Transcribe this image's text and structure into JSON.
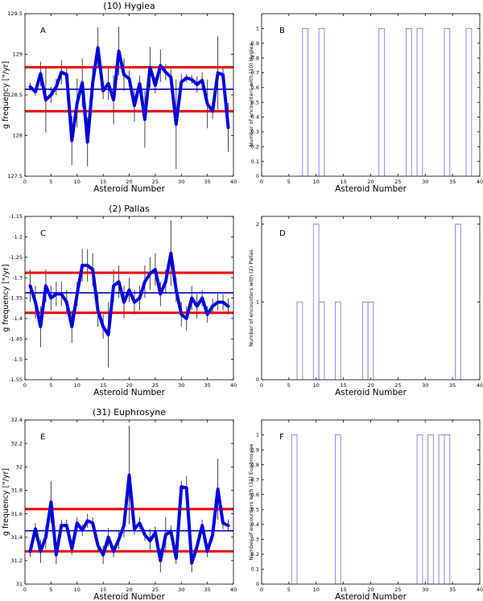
{
  "chart_data": [
    {
      "type": "line",
      "title": "(10) Hygiea",
      "panel_label": "A",
      "xlabel": "Asteroid Number",
      "ylabel": "g frequency [\"/yr]",
      "xlim": [
        0,
        40
      ],
      "ylim": [
        127.5,
        129.5
      ],
      "xticks": [
        0,
        5,
        10,
        15,
        20,
        25,
        30,
        35,
        40
      ],
      "yticks": [
        127.5,
        128,
        128.5,
        129,
        129.5
      ],
      "ytick_labels": [
        "127.5",
        "128",
        "128.5",
        "129",
        "129.5"
      ],
      "mean": 128.57,
      "band": [
        128.3,
        128.84
      ],
      "series": [
        {
          "name": "g frequency",
          "x": [
            1,
            2,
            3,
            4,
            5,
            6,
            7,
            8,
            9,
            10,
            11,
            12,
            13,
            14,
            15,
            16,
            17,
            18,
            19,
            20,
            21,
            22,
            23,
            24,
            25,
            26,
            27,
            28,
            29,
            30,
            31,
            32,
            33,
            34,
            35,
            36,
            37,
            38,
            39
          ],
          "y": [
            128.6,
            128.54,
            128.76,
            128.44,
            128.5,
            128.6,
            128.78,
            128.75,
            127.94,
            128.4,
            128.65,
            127.92,
            128.65,
            129.08,
            128.55,
            128.64,
            128.44,
            129.04,
            128.75,
            128.7,
            128.37,
            128.64,
            128.2,
            128.84,
            128.62,
            128.86,
            128.78,
            128.72,
            128.14,
            128.66,
            128.71,
            128.69,
            128.63,
            128.68,
            128.39,
            128.3,
            128.77,
            128.75,
            128.1
          ],
          "err": [
            0.05,
            0.05,
            0.15,
            0.4,
            0.1,
            0.1,
            0.15,
            0.1,
            0.3,
            0.3,
            0.3,
            0.3,
            0.2,
            0.25,
            0.1,
            0.2,
            0.3,
            0.3,
            0.2,
            0.1,
            0.2,
            0.1,
            0.35,
            0.25,
            0.1,
            0.2,
            0.1,
            0.1,
            0.55,
            0.1,
            0.05,
            0.05,
            0.1,
            0.1,
            0.3,
            0.1,
            0.45,
            0.1,
            0.3
          ]
        }
      ]
    },
    {
      "type": "bar",
      "panel_label": "B",
      "xlabel": "Asteroid Number",
      "ylabel": "Number of encounters with (10) Hygiea",
      "xlim": [
        0,
        40
      ],
      "ylim": [
        0,
        1.1
      ],
      "xticks": [
        0,
        5,
        10,
        15,
        20,
        25,
        30,
        35,
        40
      ],
      "yticks": [
        0,
        0.1,
        0.2,
        0.3,
        0.4,
        0.5,
        0.6,
        0.7,
        0.8,
        0.9,
        1
      ],
      "ytick_labels": [
        "0",
        "0.1",
        "0.2",
        "0.3",
        "0.4",
        "0.5",
        "0.6",
        "0.7",
        "0.8",
        "0.9",
        "1"
      ],
      "bars": [
        {
          "x": 8,
          "value": 1
        },
        {
          "x": 11,
          "value": 1
        },
        {
          "x": 22,
          "value": 1
        },
        {
          "x": 27,
          "value": 1
        },
        {
          "x": 29,
          "value": 1
        },
        {
          "x": 34,
          "value": 1
        },
        {
          "x": 38,
          "value": 1
        }
      ]
    },
    {
      "type": "line",
      "title": "(2) Pallas",
      "panel_label": "C",
      "xlabel": "Asteroid Number",
      "ylabel": "g frequency [\"/yr]",
      "xlim": [
        0,
        40
      ],
      "ylim": [
        -1.55,
        -1.15
      ],
      "xticks": [
        0,
        5,
        10,
        15,
        20,
        25,
        30,
        35,
        40
      ],
      "yticks": [
        -1.55,
        -1.5,
        -1.45,
        -1.4,
        -1.35,
        -1.3,
        -1.25,
        -1.2,
        -1.15
      ],
      "ytick_labels": [
        "-1.55",
        "-1.5",
        "-1.45",
        "-1.4",
        "-1.35",
        "-1.3",
        "-1.25",
        "-1.2",
        "-1.15"
      ],
      "mean": -1.337,
      "band": [
        -1.386,
        -1.288
      ],
      "series": [
        {
          "name": "g frequency",
          "x": [
            1,
            2,
            3,
            4,
            5,
            6,
            7,
            8,
            9,
            10,
            11,
            12,
            13,
            14,
            15,
            16,
            17,
            18,
            19,
            20,
            21,
            22,
            23,
            24,
            25,
            26,
            27,
            28,
            29,
            30,
            31,
            32,
            33,
            34,
            35,
            36,
            37,
            38,
            39
          ],
          "y": [
            -1.32,
            -1.36,
            -1.42,
            -1.32,
            -1.35,
            -1.34,
            -1.34,
            -1.36,
            -1.42,
            -1.34,
            -1.27,
            -1.27,
            -1.28,
            -1.38,
            -1.42,
            -1.44,
            -1.32,
            -1.31,
            -1.36,
            -1.33,
            -1.36,
            -1.35,
            -1.31,
            -1.29,
            -1.28,
            -1.34,
            -1.31,
            -1.24,
            -1.33,
            -1.39,
            -1.4,
            -1.35,
            -1.37,
            -1.35,
            -1.39,
            -1.37,
            -1.36,
            -1.36,
            -1.37
          ],
          "err": [
            0.04,
            0.04,
            0.05,
            0.04,
            0.03,
            0.03,
            0.03,
            0.03,
            0.04,
            0.03,
            0.04,
            0.04,
            0.04,
            0.04,
            0.03,
            0.08,
            0.04,
            0.04,
            0.04,
            0.03,
            0.03,
            0.03,
            0.04,
            0.04,
            0.04,
            0.03,
            0.03,
            0.08,
            0.03,
            0.03,
            0.03,
            0.03,
            0.03,
            0.02,
            0.02,
            0.02,
            0.02,
            0.02,
            0.02
          ]
        }
      ]
    },
    {
      "type": "bar",
      "panel_label": "D",
      "xlabel": "Asteroid Number",
      "ylabel": "Number of encounters with (2) Pallas",
      "xlim": [
        0,
        40
      ],
      "ylim": [
        0,
        2.1
      ],
      "xticks": [
        0,
        5,
        10,
        15,
        20,
        25,
        30,
        35,
        40
      ],
      "yticks": [
        0,
        1,
        2
      ],
      "ytick_labels": [
        "0",
        "1",
        "2"
      ],
      "bars": [
        {
          "x": 7,
          "value": 1
        },
        {
          "x": 10,
          "value": 2
        },
        {
          "x": 11,
          "value": 1
        },
        {
          "x": 14,
          "value": 1
        },
        {
          "x": 19,
          "value": 1
        },
        {
          "x": 20,
          "value": 1
        },
        {
          "x": 36,
          "value": 2
        }
      ]
    },
    {
      "type": "line",
      "title": "(31) Euphrosyne",
      "panel_label": "E",
      "xlabel": "Asteroid Number",
      "ylabel": "g frequency [\"/yr]",
      "xlim": [
        0,
        40
      ],
      "ylim": [
        31,
        32.4
      ],
      "xticks": [
        0,
        5,
        10,
        15,
        20,
        25,
        30,
        35,
        40
      ],
      "yticks": [
        31,
        31.2,
        31.4,
        31.6,
        31.8,
        32,
        32.2,
        32.4
      ],
      "ytick_labels": [
        "31",
        "31.2",
        "31.4",
        "31.6",
        "31.8",
        "32",
        "32.2",
        "32.4"
      ],
      "mean": 31.455,
      "band": [
        31.28,
        31.64
      ],
      "series": [
        {
          "name": "g frequency",
          "x": [
            1,
            2,
            3,
            4,
            5,
            6,
            7,
            8,
            9,
            10,
            11,
            12,
            13,
            14,
            15,
            16,
            17,
            18,
            19,
            20,
            21,
            22,
            23,
            24,
            25,
            26,
            27,
            28,
            29,
            30,
            31,
            32,
            33,
            34,
            35,
            36,
            37,
            38,
            39
          ],
          "y": [
            31.28,
            31.47,
            31.28,
            31.4,
            31.7,
            31.25,
            31.5,
            31.5,
            31.3,
            31.52,
            31.46,
            31.54,
            31.52,
            31.33,
            31.25,
            31.4,
            31.28,
            31.38,
            31.5,
            31.93,
            31.47,
            31.52,
            31.42,
            31.37,
            31.44,
            31.2,
            31.42,
            31.45,
            31.22,
            31.83,
            31.82,
            31.18,
            31.32,
            31.5,
            31.28,
            31.42,
            31.81,
            31.52,
            31.5
          ],
          "err": [
            0.05,
            0.05,
            0.1,
            0.1,
            0.18,
            0.08,
            0.05,
            0.05,
            0.05,
            0.05,
            0.05,
            0.06,
            0.05,
            0.05,
            0.08,
            0.08,
            0.05,
            0.08,
            0.1,
            0.42,
            0.05,
            0.05,
            0.05,
            0.1,
            0.05,
            0.1,
            0.15,
            0.05,
            0.05,
            0.05,
            0.1,
            0.08,
            0.05,
            0.05,
            0.05,
            0.05,
            0.26,
            0.05,
            0.05
          ]
        }
      ]
    },
    {
      "type": "bar",
      "panel_label": "F",
      "xlabel": "Asteroid Number",
      "ylabel": "Number of encounters with (31) Euphrosyne",
      "xlim": [
        0,
        40
      ],
      "ylim": [
        0,
        1.1
      ],
      "xticks": [
        0,
        5,
        10,
        15,
        20,
        25,
        30,
        35,
        40
      ],
      "yticks": [
        0,
        0.1,
        0.2,
        0.3,
        0.4,
        0.5,
        0.6,
        0.7,
        0.8,
        0.9,
        1
      ],
      "ytick_labels": [
        "0",
        "0.1",
        "0.2",
        "0.3",
        "0.4",
        "0.5",
        "0.6",
        "0.7",
        "0.8",
        "0.9",
        "1"
      ],
      "bars": [
        {
          "x": 6,
          "value": 1
        },
        {
          "x": 14,
          "value": 1
        },
        {
          "x": 29,
          "value": 1
        },
        {
          "x": 31,
          "value": 1
        },
        {
          "x": 33,
          "value": 1
        },
        {
          "x": 34,
          "value": 1
        }
      ]
    }
  ],
  "colors": {
    "series_line": "#0000dd",
    "band_line": "#ee0000",
    "mean_line": "#0000cc",
    "error_bar": "#444444",
    "histogram": "#8a8ae6",
    "axis": "#000000"
  }
}
